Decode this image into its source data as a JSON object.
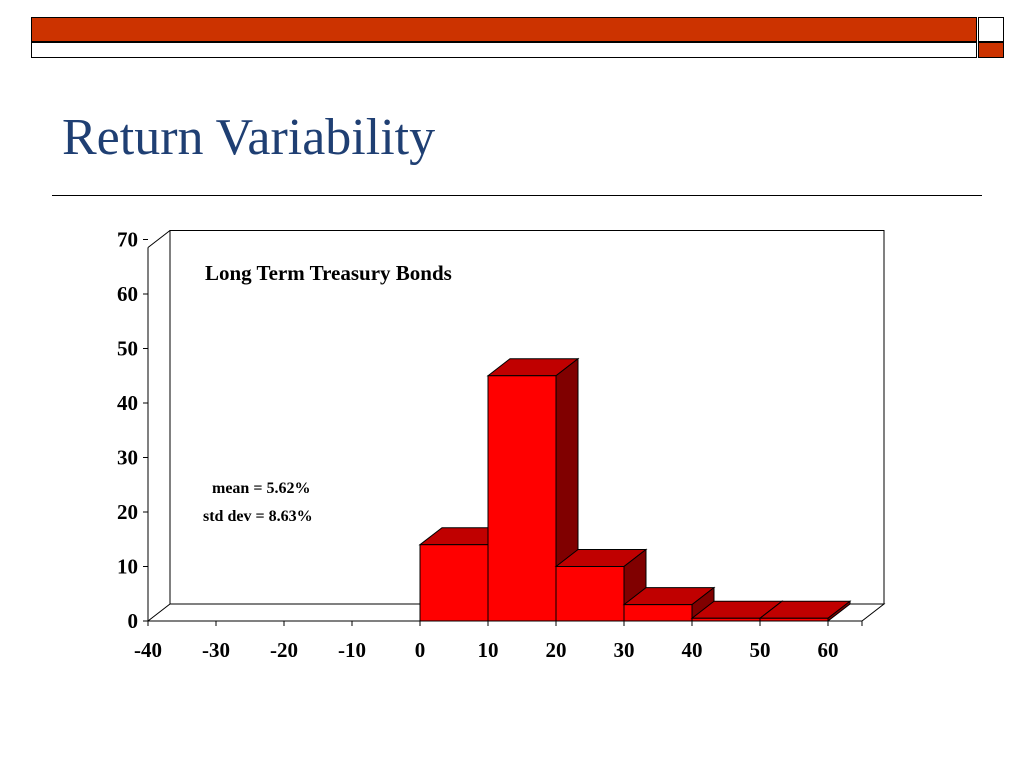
{
  "slide": {
    "title": "Return Variability",
    "accent_color": "#cc3300",
    "title_color": "#1f3f73"
  },
  "chart_data": {
    "type": "bar",
    "title": "Long Term Treasury Bonds",
    "bar_style": "3d",
    "bar_color": "#ff0000",
    "x_ticks": [
      "-40",
      "-30",
      "-20",
      "-10",
      "0",
      "10",
      "20",
      "30",
      "40",
      "50",
      "60"
    ],
    "categories": [
      "0",
      "10",
      "20",
      "30",
      "40",
      "50"
    ],
    "values": [
      14,
      45,
      10,
      3,
      0.5,
      0.5
    ],
    "ylim": [
      0,
      70
    ],
    "y_ticks": [
      0,
      10,
      20,
      30,
      40,
      50,
      60,
      70
    ],
    "grid": false,
    "annotations": {
      "mean": "mean = 5.62%",
      "std": "std dev = 8.63%"
    }
  }
}
